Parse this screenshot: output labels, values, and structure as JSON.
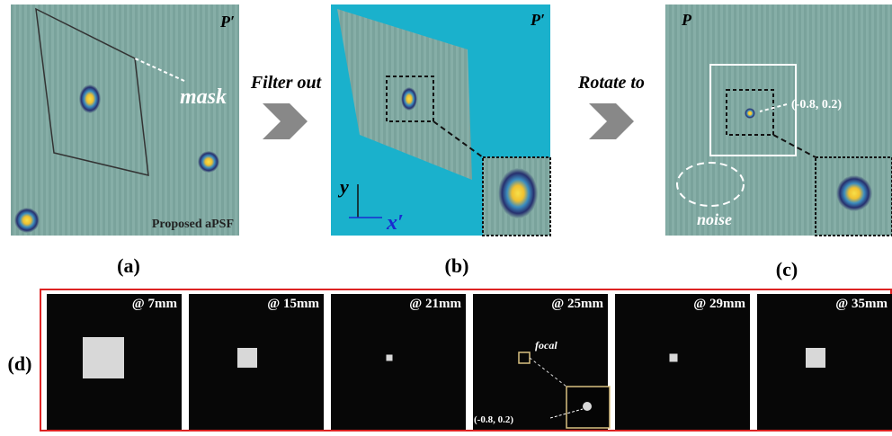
{
  "panel_a": {
    "corner_label": "P′",
    "mask": "mask",
    "caption": "Proposed aPSF",
    "label": "(a)"
  },
  "step_1": "Filter out",
  "panel_b": {
    "corner_label": "P′",
    "axis_y": "y",
    "axis_x": "x′",
    "label": "(b)"
  },
  "step_2": "Rotate to",
  "panel_c": {
    "corner_label": "P",
    "coordinate": "(-0.8, 0.2)",
    "noise": "noise",
    "label": "(c)"
  },
  "panel_d": {
    "label": "(d)",
    "frames": [
      "@ 7mm",
      "@ 15mm",
      "@ 21mm",
      "@ 25mm",
      "@ 29mm",
      "@ 35mm"
    ],
    "focal": "focal",
    "coordinate": "(-0.8, 0.2)"
  }
}
